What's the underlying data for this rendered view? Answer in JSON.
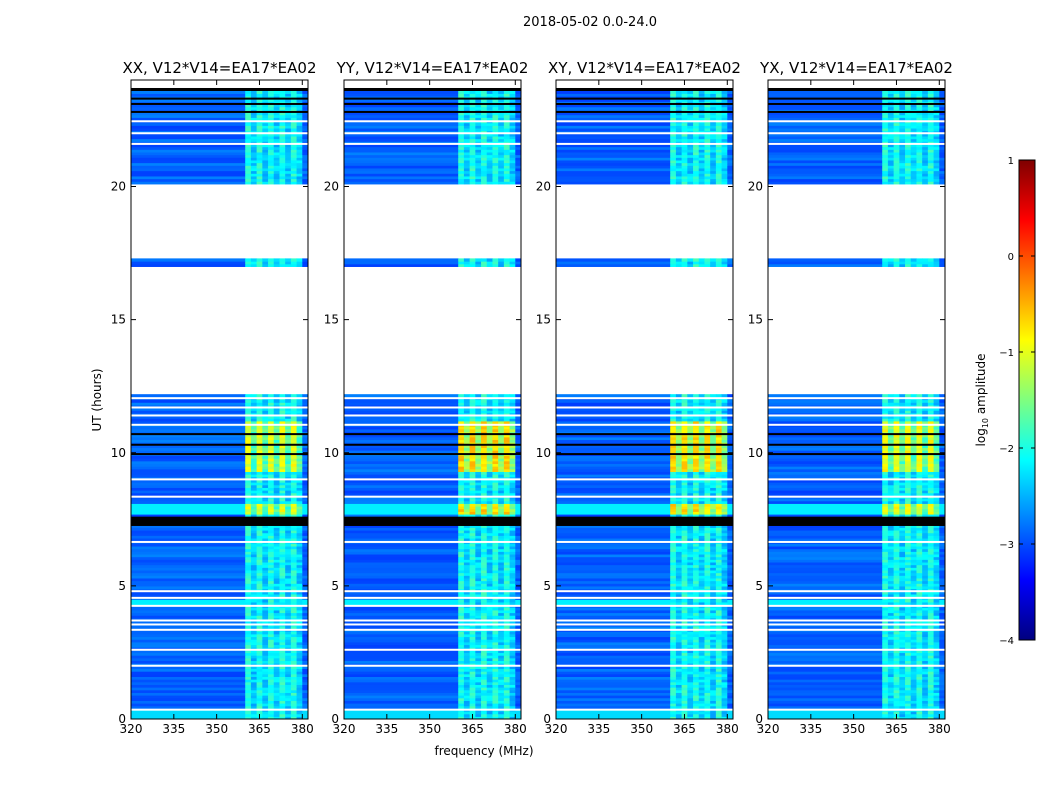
{
  "figure": {
    "suptitle": "2018-05-02 0.0-24.0",
    "xlabel": "frequency (MHz)",
    "ylabel": "UT (hours)"
  },
  "colorbar": {
    "label": "log10 amplitude",
    "label_base": "log",
    "label_sub": "10",
    "label_rest": " amplitude",
    "range": [
      -4,
      1
    ],
    "ticks": [
      1,
      0,
      -1,
      -2,
      -3,
      -4
    ],
    "tick_labels": [
      "1",
      "0",
      "−1",
      "−2",
      "−3",
      "−4"
    ],
    "colormap": "jet",
    "colors": [
      "#00007f",
      "#0000ff",
      "#007fff",
      "#00ffff",
      "#7fff7f",
      "#ffff00",
      "#ff7f00",
      "#ff0000",
      "#7f0000"
    ]
  },
  "chart_data": {
    "type": "heatmap",
    "title": "2018-05-02 0.0-24.0",
    "xlabel": "frequency (MHz)",
    "ylabel": "UT (hours)",
    "xlim": [
      320,
      382
    ],
    "ylim": [
      0,
      24
    ],
    "xticks": [
      320,
      335,
      350,
      365,
      380
    ],
    "yticks": [
      0,
      5,
      10,
      15,
      20
    ],
    "value_label": "log10 amplitude",
    "value_range": [
      -4,
      1
    ],
    "panels": [
      {
        "title": "XX, V12*V14=EA17*EA02",
        "peak_level": 0.0
      },
      {
        "title": "YY, V12*V14=EA17*EA02",
        "peak_level": 0.35
      },
      {
        "title": "XY, V12*V14=EA17*EA02",
        "peak_level": 0.3
      },
      {
        "title": "YX, V12*V14=EA17*EA02",
        "peak_level": 0.05
      }
    ],
    "background_level": -2.9,
    "rfi_band_mhz": [
      360,
      380
    ],
    "data_gaps_hours": [
      [
        12.2,
        16.95
      ],
      [
        17.25,
        20.1
      ],
      [
        23.6,
        24.0
      ]
    ],
    "strong_rfi_hours": [
      [
        7.6,
        8.0
      ],
      [
        9.2,
        11.1
      ]
    ]
  }
}
